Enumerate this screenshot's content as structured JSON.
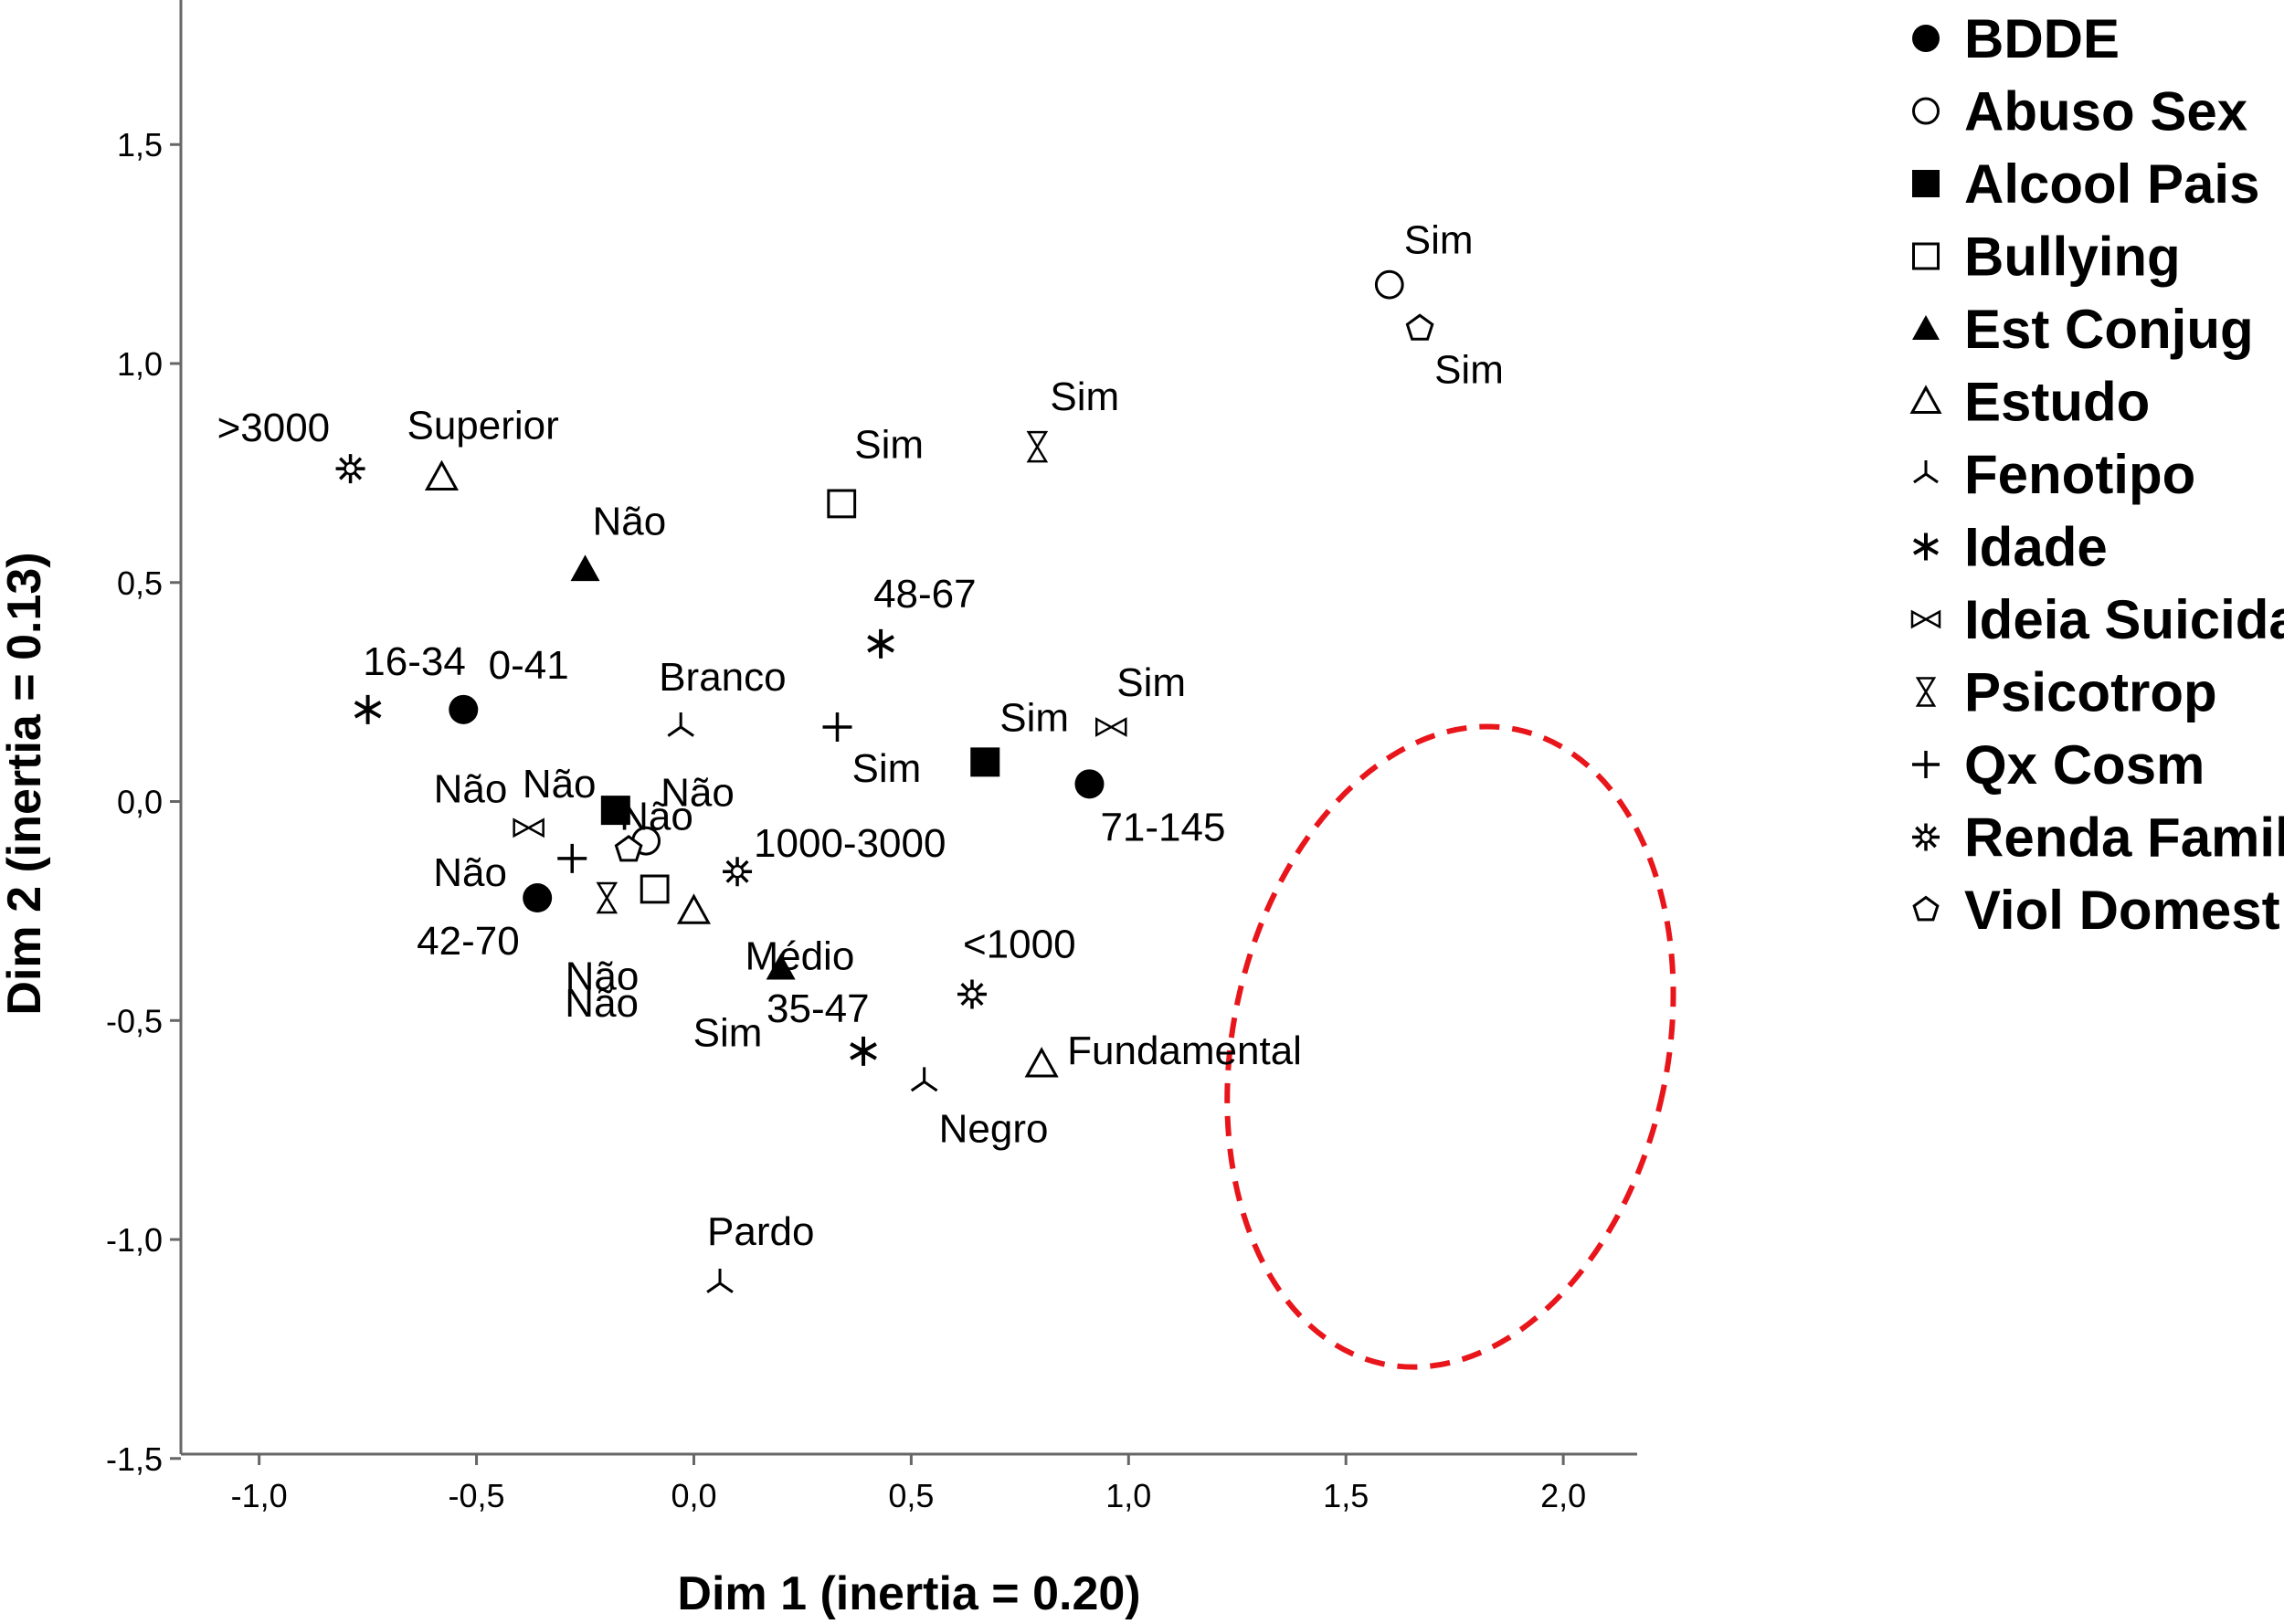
{
  "chart_data": {
    "type": "scatter",
    "xlabel": "Dim 1 (inertia = 0.20)",
    "ylabel": "Dim 2 (inertia = 0.13)",
    "xlim": [
      -1.18,
      2.17
    ],
    "ylim": [
      -1.49,
      1.83
    ],
    "x_ticks": [
      {
        "value": -1.0,
        "label": "-1,0"
      },
      {
        "value": -0.5,
        "label": "-0,5"
      },
      {
        "value": 0.0,
        "label": "0,0"
      },
      {
        "value": 0.5,
        "label": "0,5"
      },
      {
        "value": 1.0,
        "label": "1,0"
      },
      {
        "value": 1.5,
        "label": "1,5"
      },
      {
        "value": 2.0,
        "label": "2,0"
      }
    ],
    "y_ticks": [
      {
        "value": -1.5,
        "label": "-1,5"
      },
      {
        "value": -1.0,
        "label": "-1,0"
      },
      {
        "value": -0.5,
        "label": "-0,5"
      },
      {
        "value": 0.0,
        "label": "0,0"
      },
      {
        "value": 0.5,
        "label": "0,5"
      },
      {
        "value": 1.0,
        "label": "1,0"
      },
      {
        "value": 1.5,
        "label": "1,5"
      }
    ],
    "grid": false,
    "legend_position": "right",
    "legend": [
      {
        "name": "BDDE",
        "marker": "circle-filled"
      },
      {
        "name": "Abuso Sex",
        "marker": "circle-open"
      },
      {
        "name": "Alcool Pais",
        "marker": "square-filled"
      },
      {
        "name": "Bullying",
        "marker": "square-open"
      },
      {
        "name": "Est Conjug",
        "marker": "triangle-filled"
      },
      {
        "name": "Estudo",
        "marker": "triangle-open"
      },
      {
        "name": "Fenotipo",
        "marker": "tri-star"
      },
      {
        "name": "Idade",
        "marker": "star"
      },
      {
        "name": "Ideia Suicida",
        "marker": "bowtie"
      },
      {
        "name": "Psicotrop",
        "marker": "hourglass"
      },
      {
        "name": "Qx Cosm",
        "marker": "plus"
      },
      {
        "name": "Renda Famil",
        "marker": "sunburst"
      },
      {
        "name": "Viol Domest",
        "marker": "pentagon-open"
      }
    ],
    "points": [
      {
        "series": "BDDE",
        "marker": "circle-filled",
        "x": -0.53,
        "y": 0.21,
        "label": "16-34"
      },
      {
        "series": "BDDE",
        "marker": "circle-filled",
        "x": -0.36,
        "y": -0.22,
        "label": "42-70"
      },
      {
        "series": "BDDE",
        "marker": "circle-filled",
        "x": 0.91,
        "y": 0.04,
        "label": "71-145"
      },
      {
        "series": "Abuso Sex",
        "marker": "circle-open",
        "x": -0.11,
        "y": -0.09,
        "label": "Não"
      },
      {
        "series": "Abuso Sex",
        "marker": "circle-open",
        "x": 1.6,
        "y": 1.18,
        "label": "Sim"
      },
      {
        "series": "Alcool Pais",
        "marker": "square-filled",
        "x": -0.18,
        "y": -0.02,
        "label": "Não"
      },
      {
        "series": "Alcool Pais",
        "marker": "square-filled",
        "x": 0.67,
        "y": 0.09,
        "label": "Sim"
      },
      {
        "series": "Bullying",
        "marker": "square-open",
        "x": -0.09,
        "y": -0.2,
        "label": "Não"
      },
      {
        "series": "Bullying",
        "marker": "square-open",
        "x": 0.34,
        "y": 0.68,
        "label": "Sim"
      },
      {
        "series": "Est Conjug",
        "marker": "triangle-filled",
        "x": -0.25,
        "y": 0.53,
        "label": "Não"
      },
      {
        "series": "Est Conjug",
        "marker": "triangle-filled",
        "x": 0.2,
        "y": -0.38,
        "label": "Sim"
      },
      {
        "series": "Estudo",
        "marker": "triangle-open",
        "x": -0.58,
        "y": 0.74,
        "label": "Superior"
      },
      {
        "series": "Estudo",
        "marker": "triangle-open",
        "x": 0.0,
        "y": -0.25,
        "label": "Médio"
      },
      {
        "series": "Estudo",
        "marker": "triangle-open",
        "x": 0.8,
        "y": -0.6,
        "label": "Fundamental"
      },
      {
        "series": "Fenotipo",
        "marker": "tri-star",
        "x": -0.03,
        "y": 0.17,
        "label": "Branco"
      },
      {
        "series": "Fenotipo",
        "marker": "tri-star",
        "x": 0.53,
        "y": -0.64,
        "label": "Negro"
      },
      {
        "series": "Fenotipo",
        "marker": "tri-star",
        "x": 0.06,
        "y": -1.1,
        "label": "Pardo"
      },
      {
        "series": "Idade",
        "marker": "star",
        "x": -0.75,
        "y": 0.21,
        "label": "0-41"
      },
      {
        "series": "Idade",
        "marker": "star",
        "x": 0.43,
        "y": 0.36,
        "label": "48-67"
      },
      {
        "series": "Idade",
        "marker": "star",
        "x": 0.39,
        "y": -0.57,
        "label": "35-47"
      },
      {
        "series": "Ideia Suicida",
        "marker": "bowtie",
        "x": -0.38,
        "y": -0.06,
        "label": "Não"
      },
      {
        "series": "Ideia Suicida",
        "marker": "bowtie",
        "x": 0.96,
        "y": 0.17,
        "label": "Sim"
      },
      {
        "series": "Psicotrop",
        "marker": "hourglass",
        "x": -0.2,
        "y": -0.22,
        "label": "Não"
      },
      {
        "series": "Psicotrop",
        "marker": "hourglass",
        "x": 0.79,
        "y": 0.81,
        "label": "Sim"
      },
      {
        "series": "Qx Cosm",
        "marker": "plus",
        "x": -0.28,
        "y": -0.13,
        "label": "Não"
      },
      {
        "series": "Qx Cosm",
        "marker": "plus",
        "x": 0.33,
        "y": 0.17,
        "label": "Sim"
      },
      {
        "series": "Renda Famil",
        "marker": "sunburst",
        "x": -0.79,
        "y": 0.76,
        "label": ">3000"
      },
      {
        "series": "Renda Famil",
        "marker": "sunburst",
        "x": 0.1,
        "y": -0.16,
        "label": "1000-3000"
      },
      {
        "series": "Renda Famil",
        "marker": "sunburst",
        "x": 0.64,
        "y": -0.44,
        "label": "<1000"
      },
      {
        "series": "Viol Domest",
        "marker": "pentagon-open",
        "x": -0.15,
        "y": -0.11,
        "label": "Não"
      },
      {
        "series": "Viol Domest",
        "marker": "pentagon-open",
        "x": 1.67,
        "y": 1.08,
        "label": "Sim"
      }
    ],
    "annotations": [
      {
        "type": "ellipse",
        "style": "dashed",
        "color": "#e8151b",
        "cx": 1.74,
        "cy": -0.56,
        "rx": 0.5,
        "ry": 0.74
      }
    ]
  }
}
